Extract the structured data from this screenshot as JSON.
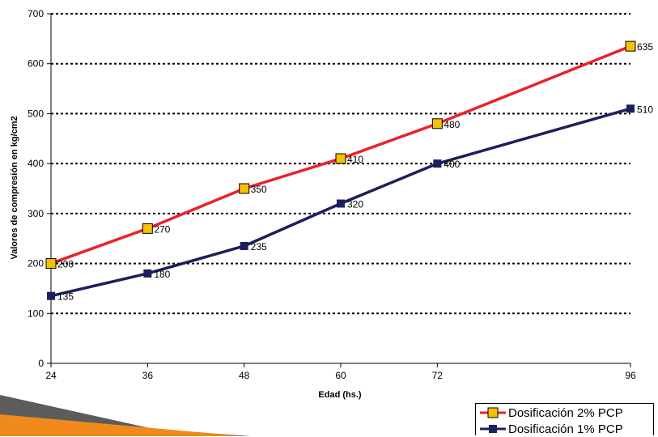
{
  "chart_data": {
    "type": "line",
    "x": [
      24,
      36,
      48,
      60,
      72,
      96
    ],
    "categories": [
      "24",
      "36",
      "48",
      "60",
      "72",
      "96"
    ],
    "series": [
      {
        "name": "Dosificación 2% PCP",
        "values": [
          200,
          270,
          350,
          410,
          480,
          635
        ],
        "color": "#e8232a",
        "marker_color": "#f2c100"
      },
      {
        "name": "Dosificación 1% PCP",
        "values": [
          135,
          180,
          235,
          320,
          400,
          510
        ],
        "color": "#1c1f5c",
        "marker_color": "#1c1f5c"
      }
    ],
    "xlabel": "Edad (hs.)",
    "ylabel": "Valores de compresión en kg/cm2",
    "ylim": [
      0,
      700
    ],
    "yticks": [
      0,
      100,
      200,
      300,
      400,
      500,
      600,
      700
    ],
    "grid": true,
    "legend_position": "bottom-right"
  },
  "decoration": {
    "accent_dark": "#5a5a5a",
    "accent_orange": "#f08a1c"
  }
}
